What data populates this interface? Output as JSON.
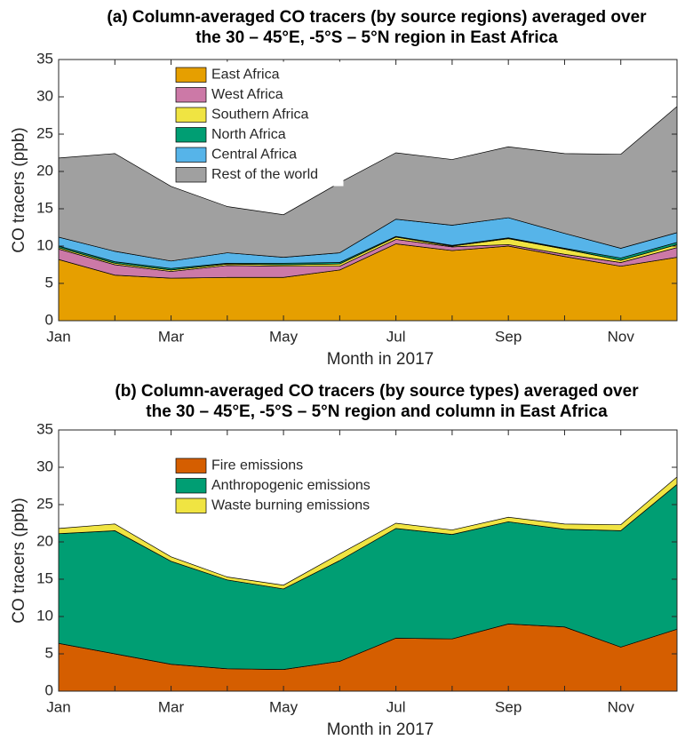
{
  "chart_data": [
    {
      "type": "stacked_area",
      "title": [
        "(a) Column-averaged CO tracers (by source regions) averaged over",
        "the 30 – 45°E, -5°S – 5°N region in East Africa"
      ],
      "xlabel": "Month in 2017",
      "ylabel": "CO tracers (ppb)",
      "categories": [
        "Jan",
        null,
        "Mar",
        null,
        "May",
        null,
        "Jul",
        null,
        "Sep",
        null,
        "Nov",
        null
      ],
      "ylim": [
        0,
        35
      ],
      "yticks": [
        0,
        5,
        10,
        15,
        20,
        25,
        30,
        35
      ],
      "grid": false,
      "legend": "upper left",
      "series": [
        {
          "name": "East Africa",
          "color": "#E69F00",
          "values": [
            8.2,
            6.1,
            5.7,
            5.8,
            5.8,
            6.8,
            10.3,
            9.4,
            10.0,
            8.6,
            7.3,
            8.5
          ]
        },
        {
          "name": "West Africa",
          "color": "#CC79A7",
          "values": [
            1.4,
            1.4,
            0.9,
            1.6,
            1.5,
            0.5,
            0.6,
            0.5,
            0.2,
            0.3,
            0.5,
            1.3
          ]
        },
        {
          "name": "Southern Africa",
          "color": "#F0E442",
          "values": [
            0.2,
            0.2,
            0.2,
            0.2,
            0.2,
            0.3,
            0.3,
            0.1,
            0.8,
            0.7,
            0.3,
            0.4
          ]
        },
        {
          "name": "North Africa",
          "color": "#009E73",
          "values": [
            0.2,
            0.2,
            0.2,
            0.1,
            0.2,
            0.2,
            0.1,
            0.1,
            0.1,
            0.1,
            0.3,
            0.3
          ]
        },
        {
          "name": "Central Africa",
          "color": "#56B4E9",
          "values": [
            1.2,
            1.4,
            1.0,
            1.4,
            0.8,
            1.3,
            2.3,
            2.7,
            2.7,
            2.0,
            1.3,
            1.3
          ]
        },
        {
          "name": "Rest of the world",
          "color": "#A0A0A0",
          "values": [
            10.6,
            13.1,
            10.0,
            6.2,
            5.7,
            9.4,
            8.9,
            8.8,
            9.5,
            10.7,
            12.6,
            16.9
          ]
        }
      ]
    },
    {
      "type": "stacked_area",
      "title": [
        "(b) Column-averaged CO tracers (by source types) averaged over",
        "the 30 – 45°E, -5°S – 5°N region and column in East Africa"
      ],
      "xlabel": "Month in 2017",
      "ylabel": "CO tracers (ppb)",
      "categories": [
        "Jan",
        null,
        "Mar",
        null,
        "May",
        null,
        "Jul",
        null,
        "Sep",
        null,
        "Nov",
        null
      ],
      "ylim": [
        0,
        35
      ],
      "yticks": [
        0,
        5,
        10,
        15,
        20,
        25,
        30,
        35
      ],
      "grid": false,
      "legend": "upper left",
      "series": [
        {
          "name": "Fire emissions",
          "color": "#D55E00",
          "values": [
            6.4,
            5.0,
            3.6,
            3.0,
            2.9,
            4.0,
            7.1,
            7.0,
            9.0,
            8.6,
            5.9,
            8.3
          ]
        },
        {
          "name": "Anthropogenic emissions",
          "color": "#009E73",
          "values": [
            14.7,
            16.5,
            13.8,
            11.9,
            10.8,
            13.5,
            14.7,
            14.0,
            13.7,
            13.1,
            15.6,
            19.4
          ]
        },
        {
          "name": "Waste burning emissions",
          "color": "#F0E442",
          "values": [
            0.7,
            0.9,
            0.6,
            0.4,
            0.5,
            0.9,
            0.7,
            0.6,
            0.6,
            0.7,
            0.8,
            1.0
          ]
        }
      ]
    }
  ]
}
